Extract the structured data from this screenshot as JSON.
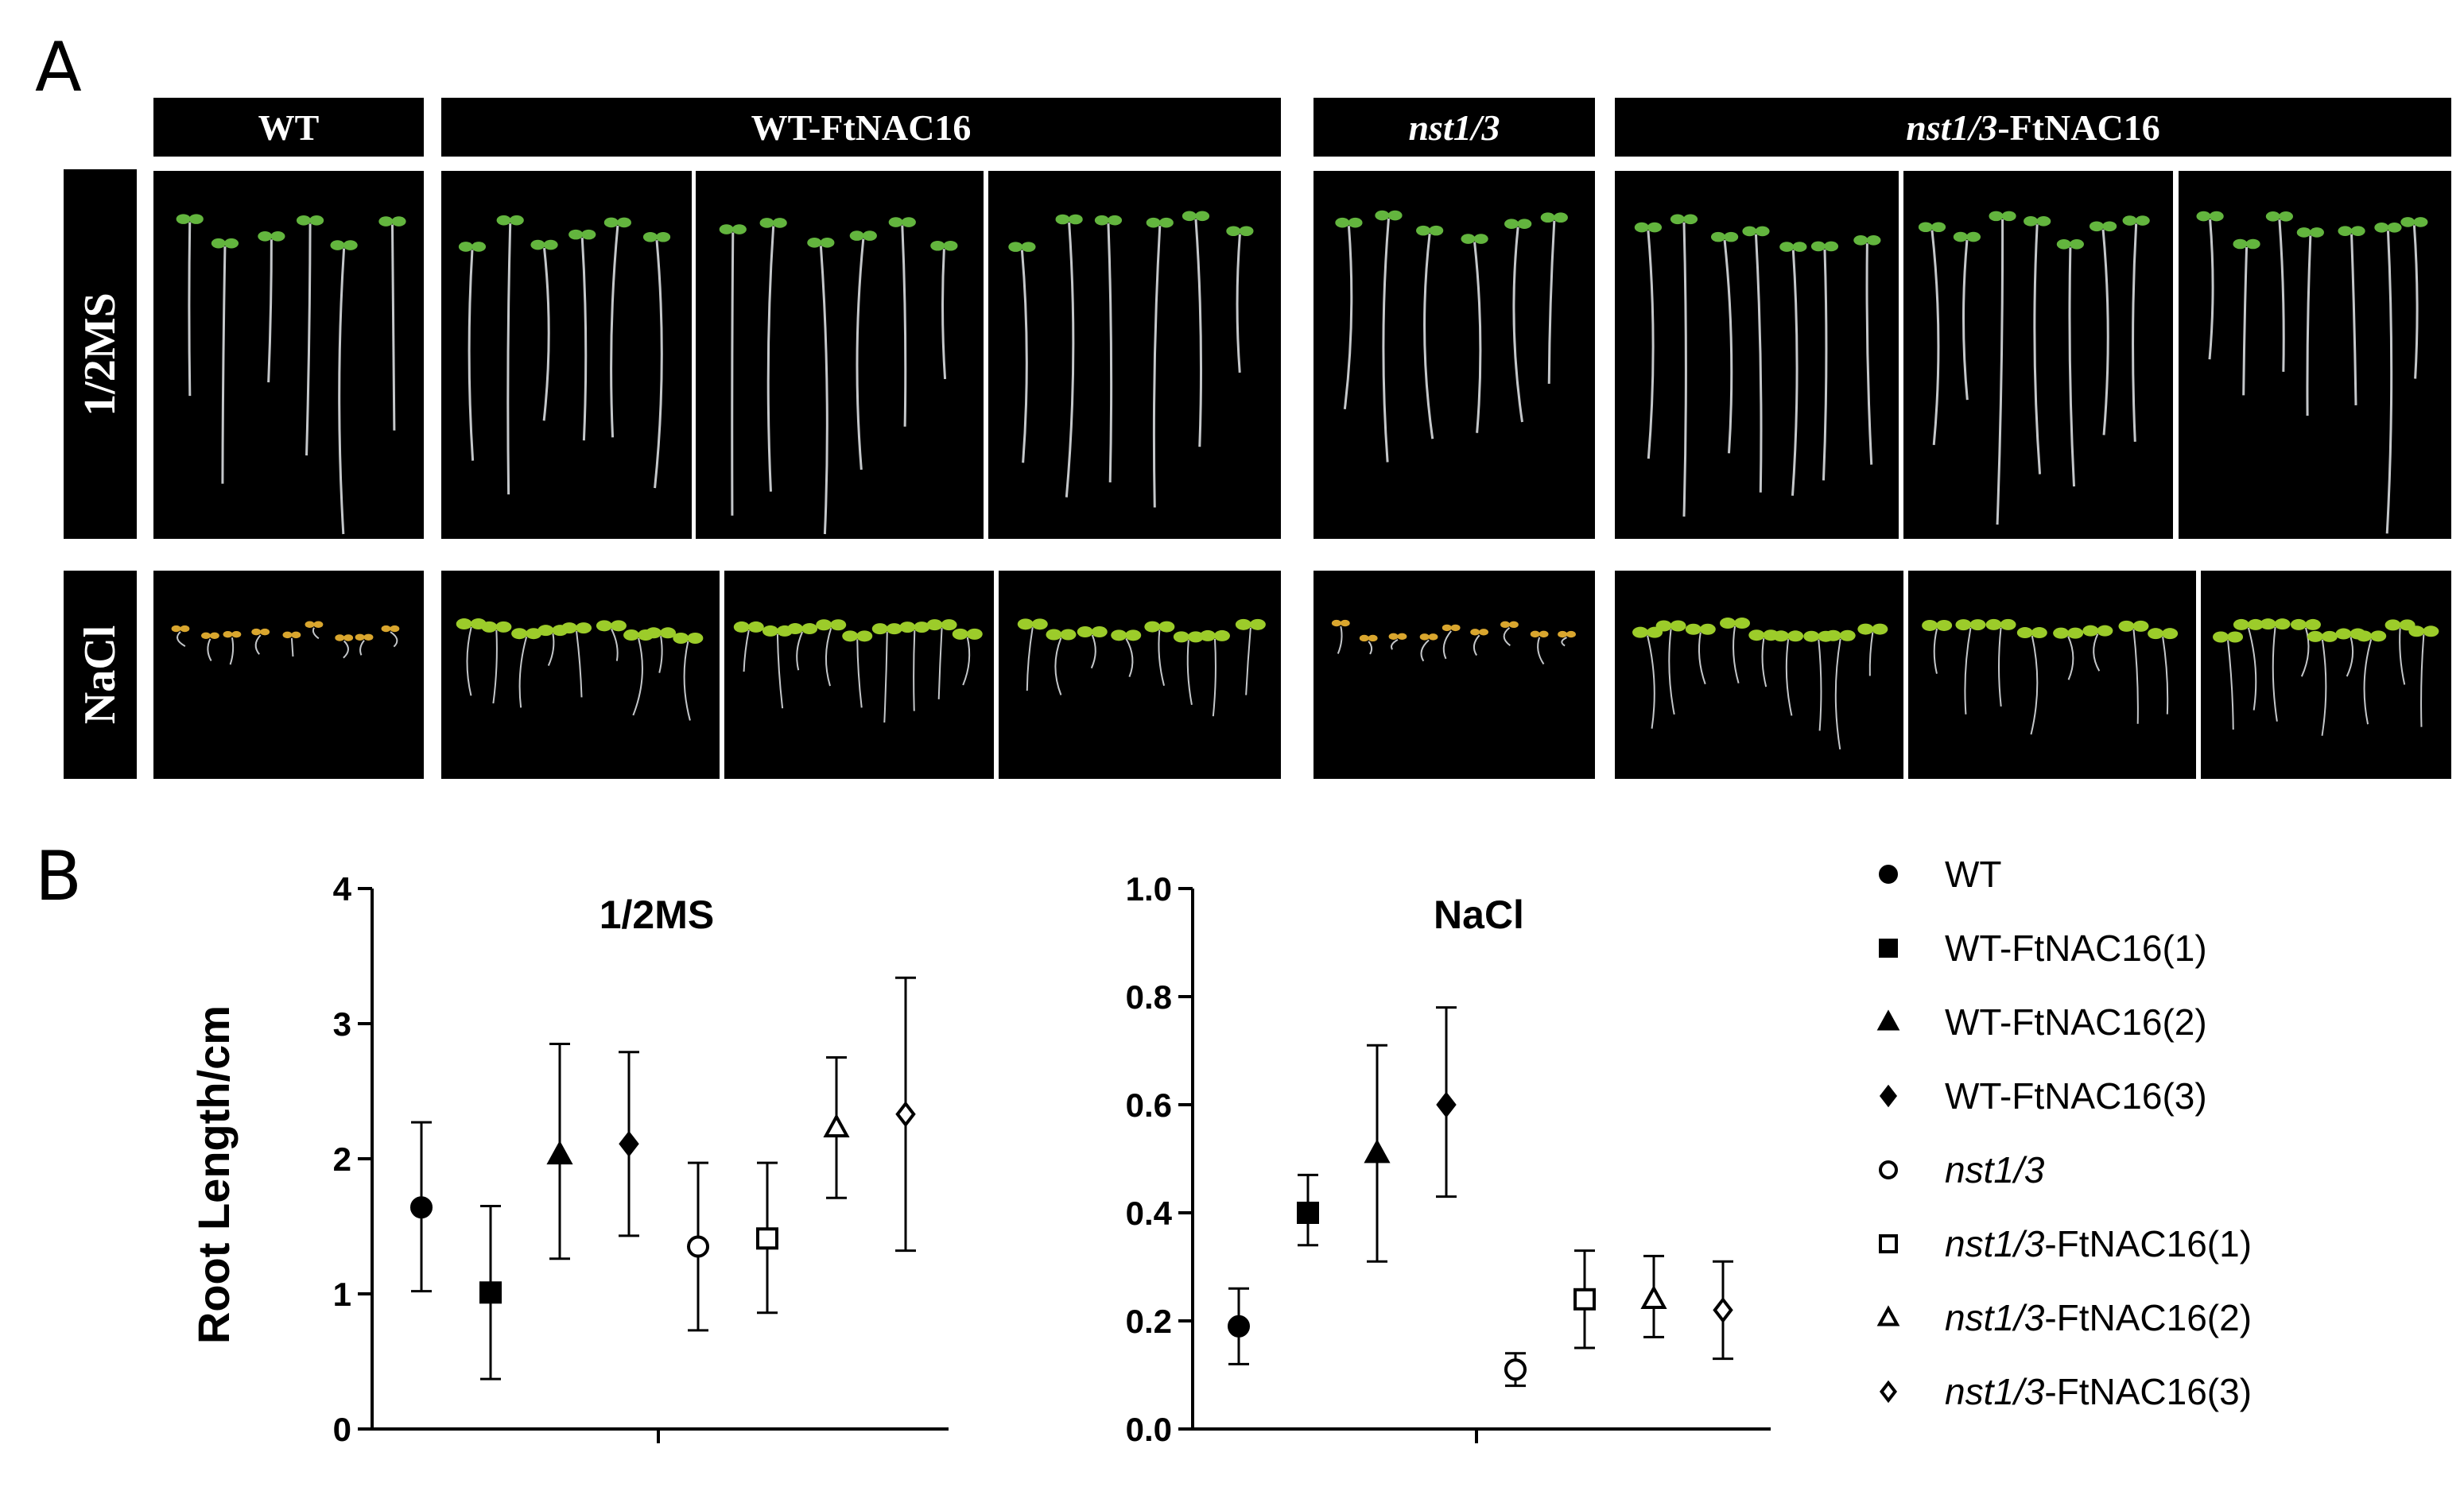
{
  "panel_a_label": "A",
  "panel_b_label": "B",
  "photo_headers": [
    {
      "id": "wt",
      "parts": [
        {
          "text": "WT",
          "italic": false
        }
      ]
    },
    {
      "id": "wt-ftnac16",
      "parts": [
        {
          "text": "WT-FtNAC16",
          "italic": false
        }
      ]
    },
    {
      "id": "nst13",
      "parts": [
        {
          "text": "nst1/3",
          "italic": true
        }
      ]
    },
    {
      "id": "nst13-ftnac16",
      "parts": [
        {
          "text": "nst1/3",
          "italic": true
        },
        {
          "text": "-FtNAC16",
          "italic": false
        }
      ]
    }
  ],
  "row_labels": {
    "ms": "1/2MS",
    "nacl": "NaCl"
  },
  "colors": {
    "background": "#000000",
    "root": "#d9dde0",
    "leaf_ms": "#63b53e",
    "leaf_nacl_wt": "#d9a62e",
    "leaf_nacl_ox": "#9ccc2a",
    "axis": "#000000"
  },
  "chart_data": [
    {
      "type": "scatter",
      "title": "1/2MS",
      "ylabel": "Root Length/cm",
      "ylim": [
        0,
        4
      ],
      "yticks": [
        "0",
        "1",
        "2",
        "3",
        "4"
      ],
      "series": [
        {
          "name": "WT",
          "marker": "circle",
          "filled": true,
          "mean": 1.64,
          "low": 1.02,
          "high": 2.27
        },
        {
          "name": "WT-FtNAC16(1)",
          "marker": "square",
          "filled": true,
          "mean": 1.01,
          "low": 0.37,
          "high": 1.65
        },
        {
          "name": "WT-FtNAC16(2)",
          "marker": "triangle",
          "filled": true,
          "mean": 2.03,
          "low": 1.26,
          "high": 2.85
        },
        {
          "name": "WT-FtNAC16(3)",
          "marker": "diamond",
          "filled": true,
          "mean": 2.11,
          "low": 1.43,
          "high": 2.79
        },
        {
          "name": "nst1/3",
          "marker": "circle",
          "filled": false,
          "mean": 1.35,
          "low": 0.73,
          "high": 1.97
        },
        {
          "name": "nst1/3-FtNAC16(1)",
          "marker": "square",
          "filled": false,
          "mean": 1.41,
          "low": 0.86,
          "high": 1.97
        },
        {
          "name": "nst1/3-FtNAC16(2)",
          "marker": "triangle",
          "filled": false,
          "mean": 2.23,
          "low": 1.71,
          "high": 2.75
        },
        {
          "name": "nst1/3-FtNAC16(3)",
          "marker": "diamond",
          "filled": false,
          "mean": 2.33,
          "low": 1.32,
          "high": 3.34
        }
      ]
    },
    {
      "type": "scatter",
      "title": "NaCl",
      "ylabel": "",
      "ylim": [
        0,
        1.0
      ],
      "yticks": [
        "0.0",
        "0.2",
        "0.4",
        "0.6",
        "0.8",
        "1.0"
      ],
      "series": [
        {
          "name": "WT",
          "marker": "circle",
          "filled": true,
          "mean": 0.19,
          "low": 0.12,
          "high": 0.26
        },
        {
          "name": "WT-FtNAC16(1)",
          "marker": "square",
          "filled": true,
          "mean": 0.4,
          "low": 0.34,
          "high": 0.47
        },
        {
          "name": "WT-FtNAC16(2)",
          "marker": "triangle",
          "filled": true,
          "mean": 0.51,
          "low": 0.31,
          "high": 0.71
        },
        {
          "name": "WT-FtNAC16(3)",
          "marker": "diamond",
          "filled": true,
          "mean": 0.6,
          "low": 0.43,
          "high": 0.78
        },
        {
          "name": "nst1/3",
          "marker": "circle",
          "filled": false,
          "mean": 0.11,
          "low": 0.08,
          "high": 0.14
        },
        {
          "name": "nst1/3-FtNAC16(1)",
          "marker": "square",
          "filled": false,
          "mean": 0.24,
          "low": 0.15,
          "high": 0.33
        },
        {
          "name": "nst1/3-FtNAC16(2)",
          "marker": "triangle",
          "filled": false,
          "mean": 0.24,
          "low": 0.17,
          "high": 0.32
        },
        {
          "name": "nst1/3-FtNAC16(3)",
          "marker": "diamond",
          "filled": false,
          "mean": 0.22,
          "low": 0.13,
          "high": 0.31
        }
      ]
    }
  ],
  "legend": [
    {
      "marker": "circle",
      "filled": true,
      "parts": [
        {
          "text": "WT",
          "italic": false
        }
      ]
    },
    {
      "marker": "square",
      "filled": true,
      "parts": [
        {
          "text": "WT-FtNAC16(1)",
          "italic": false
        }
      ]
    },
    {
      "marker": "triangle",
      "filled": true,
      "parts": [
        {
          "text": "WT-FtNAC16(2)",
          "italic": false
        }
      ]
    },
    {
      "marker": "diamond",
      "filled": true,
      "parts": [
        {
          "text": "WT-FtNAC16(3)",
          "italic": false
        }
      ]
    },
    {
      "marker": "circle",
      "filled": false,
      "parts": [
        {
          "text": "nst1/3",
          "italic": true
        }
      ]
    },
    {
      "marker": "square",
      "filled": false,
      "parts": [
        {
          "text": "nst1/3",
          "italic": true
        },
        {
          "text": "-FtNAC16(1)",
          "italic": false
        }
      ]
    },
    {
      "marker": "triangle",
      "filled": false,
      "parts": [
        {
          "text": "nst1/3",
          "italic": true
        },
        {
          "text": "-FtNAC16(2)",
          "italic": false
        }
      ]
    },
    {
      "marker": "diamond",
      "filled": false,
      "parts": [
        {
          "text": "nst1/3",
          "italic": true
        },
        {
          "text": "-FtNAC16(3)",
          "italic": false
        }
      ]
    }
  ]
}
